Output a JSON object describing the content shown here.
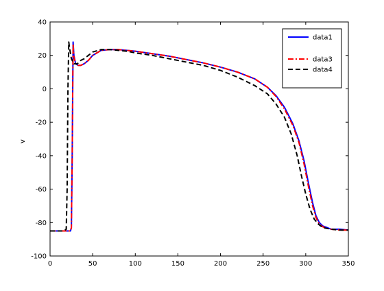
{
  "chart_data": {
    "type": "line",
    "title": "",
    "xlabel": "",
    "ylabel": "v",
    "xlim": [
      0,
      350
    ],
    "ylim": [
      -100,
      40
    ],
    "xticks": [
      0,
      50,
      100,
      150,
      200,
      250,
      300,
      350
    ],
    "yticks": [
      -100,
      -80,
      -60,
      -40,
      -20,
      0,
      20,
      40
    ],
    "grid": false,
    "legend_position": "top-right",
    "series": [
      {
        "name": "data1",
        "color": "#0000ff",
        "dash": "solid",
        "x": [
          0,
          20,
          24,
          25,
          26,
          27,
          28,
          30,
          33,
          36,
          40,
          45,
          50,
          60,
          70,
          80,
          90,
          100,
          120,
          140,
          160,
          180,
          200,
          220,
          240,
          255,
          265,
          275,
          285,
          292,
          298,
          303,
          308,
          312,
          316,
          320,
          325,
          330,
          340,
          350
        ],
        "y": [
          -85,
          -85,
          -85,
          -83,
          -40,
          28,
          20,
          15,
          14,
          14,
          15,
          17,
          20,
          23,
          23.5,
          23.5,
          23,
          22.5,
          21,
          19.5,
          17.5,
          15.5,
          13,
          10,
          6,
          1,
          -4,
          -11,
          -21,
          -31,
          -43,
          -56,
          -68,
          -76,
          -80,
          -82,
          -83,
          -84,
          -84,
          -84.5
        ]
      },
      {
        "name": "data3",
        "color": "#ff0000",
        "dash": "dashdot",
        "x": [
          0,
          20,
          24,
          25,
          26,
          27,
          28,
          30,
          33,
          36,
          40,
          45,
          50,
          60,
          70,
          80,
          90,
          100,
          120,
          140,
          160,
          180,
          200,
          220,
          240,
          255,
          265,
          275,
          285,
          292,
          298,
          303,
          308,
          312,
          316,
          320,
          325,
          330,
          340,
          350
        ],
        "y": [
          -85,
          -85,
          -85,
          -83,
          -40,
          27,
          19,
          15,
          14,
          14,
          15,
          17,
          20,
          23,
          23.5,
          23.5,
          23,
          22.5,
          21,
          19.5,
          17.5,
          15.5,
          13,
          10,
          6,
          1,
          -4.5,
          -12,
          -22,
          -32,
          -45,
          -58,
          -70,
          -77,
          -81,
          -82.5,
          -83.5,
          -84,
          -84.5,
          -84.5
        ]
      },
      {
        "name": "data4",
        "color": "#000000",
        "dash": "dashed",
        "x": [
          0,
          16,
          19,
          20,
          21,
          22,
          23,
          25,
          28,
          32,
          36,
          40,
          45,
          50,
          60,
          70,
          80,
          90,
          100,
          120,
          140,
          160,
          180,
          200,
          220,
          240,
          255,
          265,
          275,
          283,
          290,
          295,
          300,
          305,
          310,
          315,
          320,
          330,
          340,
          350
        ],
        "y": [
          -85,
          -85,
          -84,
          -60,
          0,
          28,
          24,
          18,
          15,
          15,
          17,
          18,
          20,
          22,
          23.5,
          23.5,
          23,
          22.5,
          21.5,
          20,
          18,
          16,
          14,
          11,
          7,
          2,
          -3,
          -9,
          -17,
          -27,
          -40,
          -52,
          -63,
          -72,
          -78,
          -81,
          -83,
          -84,
          -84.5,
          -84.5
        ]
      }
    ]
  }
}
